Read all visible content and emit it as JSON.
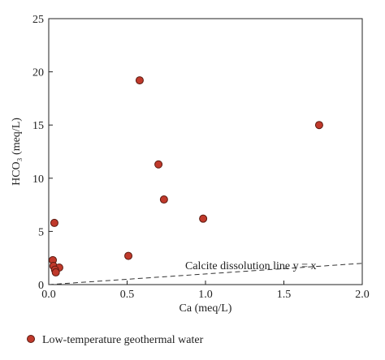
{
  "chart_data": {
    "type": "scatter",
    "xlabel": "Ca (meq/L)",
    "ylabel": "HCO₃ (meq/L)",
    "xlim": [
      0,
      2.0
    ],
    "ylim": [
      0,
      25
    ],
    "xticks": [
      {
        "value": 0,
        "label": "0.0"
      },
      {
        "value": 0.5,
        "label": "0.5"
      },
      {
        "value": 1.0,
        "label": "1.0"
      },
      {
        "value": 1.5,
        "label": "1.5"
      },
      {
        "value": 2.0,
        "label": "2.0"
      }
    ],
    "yticks": [
      0,
      5,
      10,
      15,
      20,
      25
    ],
    "series": [
      {
        "name": "Low-temperature geothermal water",
        "color": "#c0392b",
        "x": [
          0.58,
          1.725,
          0.7,
          0.735,
          0.985,
          0.508,
          0.036,
          0.026,
          0.03,
          0.067,
          0.04,
          0.045
        ],
        "values": [
          19.2,
          15.0,
          11.3,
          8.0,
          6.2,
          2.7,
          5.8,
          2.3,
          1.75,
          1.6,
          1.4,
          1.15
        ]
      }
    ],
    "reference_line": {
      "label": "Calcite dissolution line y = x",
      "x": [
        0,
        2.0
      ],
      "y": [
        0,
        2.0
      ]
    }
  }
}
